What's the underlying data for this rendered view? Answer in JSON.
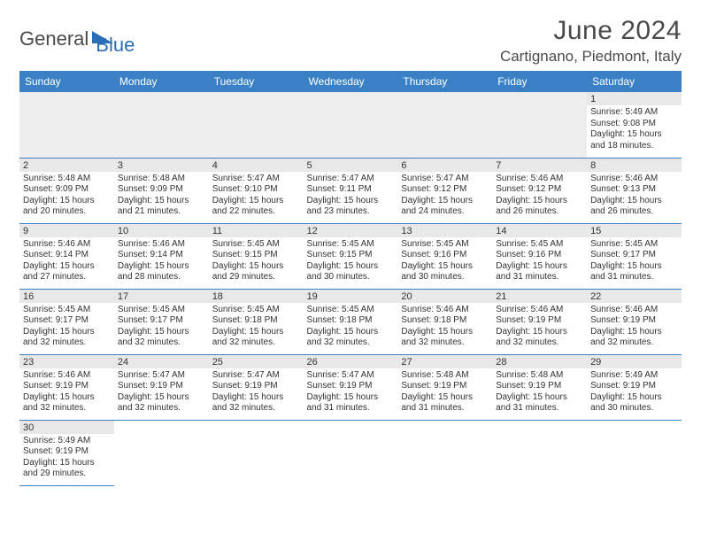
{
  "logo": {
    "part1": "General",
    "part2": "Blue"
  },
  "header": {
    "monthTitle": "June 2024",
    "location": "Cartignano, Piedmont, Italy"
  },
  "style": {
    "headerBg": "#3a80c4",
    "headerText": "#ffffff",
    "dayNumBg": "#e8e8e8",
    "borderColor": "#3a80c4",
    "logoGray": "#4a4a4a",
    "logoBlue": "#2a6fb5",
    "titleFontSize": 30,
    "locationFontSize": 17,
    "cellFontSize": 10
  },
  "columns": [
    "Sunday",
    "Monday",
    "Tuesday",
    "Wednesday",
    "Thursday",
    "Friday",
    "Saturday"
  ],
  "weeks": [
    [
      null,
      null,
      null,
      null,
      null,
      null,
      {
        "d": "1",
        "sr": "5:49 AM",
        "ss": "9:08 PM",
        "dl1": "15 hours",
        "dl2": "and 18 minutes."
      }
    ],
    [
      {
        "d": "2",
        "sr": "5:48 AM",
        "ss": "9:09 PM",
        "dl1": "15 hours",
        "dl2": "and 20 minutes."
      },
      {
        "d": "3",
        "sr": "5:48 AM",
        "ss": "9:09 PM",
        "dl1": "15 hours",
        "dl2": "and 21 minutes."
      },
      {
        "d": "4",
        "sr": "5:47 AM",
        "ss": "9:10 PM",
        "dl1": "15 hours",
        "dl2": "and 22 minutes."
      },
      {
        "d": "5",
        "sr": "5:47 AM",
        "ss": "9:11 PM",
        "dl1": "15 hours",
        "dl2": "and 23 minutes."
      },
      {
        "d": "6",
        "sr": "5:47 AM",
        "ss": "9:12 PM",
        "dl1": "15 hours",
        "dl2": "and 24 minutes."
      },
      {
        "d": "7",
        "sr": "5:46 AM",
        "ss": "9:12 PM",
        "dl1": "15 hours",
        "dl2": "and 26 minutes."
      },
      {
        "d": "8",
        "sr": "5:46 AM",
        "ss": "9:13 PM",
        "dl1": "15 hours",
        "dl2": "and 26 minutes."
      }
    ],
    [
      {
        "d": "9",
        "sr": "5:46 AM",
        "ss": "9:14 PM",
        "dl1": "15 hours",
        "dl2": "and 27 minutes."
      },
      {
        "d": "10",
        "sr": "5:46 AM",
        "ss": "9:14 PM",
        "dl1": "15 hours",
        "dl2": "and 28 minutes."
      },
      {
        "d": "11",
        "sr": "5:45 AM",
        "ss": "9:15 PM",
        "dl1": "15 hours",
        "dl2": "and 29 minutes."
      },
      {
        "d": "12",
        "sr": "5:45 AM",
        "ss": "9:15 PM",
        "dl1": "15 hours",
        "dl2": "and 30 minutes."
      },
      {
        "d": "13",
        "sr": "5:45 AM",
        "ss": "9:16 PM",
        "dl1": "15 hours",
        "dl2": "and 30 minutes."
      },
      {
        "d": "14",
        "sr": "5:45 AM",
        "ss": "9:16 PM",
        "dl1": "15 hours",
        "dl2": "and 31 minutes."
      },
      {
        "d": "15",
        "sr": "5:45 AM",
        "ss": "9:17 PM",
        "dl1": "15 hours",
        "dl2": "and 31 minutes."
      }
    ],
    [
      {
        "d": "16",
        "sr": "5:45 AM",
        "ss": "9:17 PM",
        "dl1": "15 hours",
        "dl2": "and 32 minutes."
      },
      {
        "d": "17",
        "sr": "5:45 AM",
        "ss": "9:17 PM",
        "dl1": "15 hours",
        "dl2": "and 32 minutes."
      },
      {
        "d": "18",
        "sr": "5:45 AM",
        "ss": "9:18 PM",
        "dl1": "15 hours",
        "dl2": "and 32 minutes."
      },
      {
        "d": "19",
        "sr": "5:45 AM",
        "ss": "9:18 PM",
        "dl1": "15 hours",
        "dl2": "and 32 minutes."
      },
      {
        "d": "20",
        "sr": "5:46 AM",
        "ss": "9:18 PM",
        "dl1": "15 hours",
        "dl2": "and 32 minutes."
      },
      {
        "d": "21",
        "sr": "5:46 AM",
        "ss": "9:19 PM",
        "dl1": "15 hours",
        "dl2": "and 32 minutes."
      },
      {
        "d": "22",
        "sr": "5:46 AM",
        "ss": "9:19 PM",
        "dl1": "15 hours",
        "dl2": "and 32 minutes."
      }
    ],
    [
      {
        "d": "23",
        "sr": "5:46 AM",
        "ss": "9:19 PM",
        "dl1": "15 hours",
        "dl2": "and 32 minutes."
      },
      {
        "d": "24",
        "sr": "5:47 AM",
        "ss": "9:19 PM",
        "dl1": "15 hours",
        "dl2": "and 32 minutes."
      },
      {
        "d": "25",
        "sr": "5:47 AM",
        "ss": "9:19 PM",
        "dl1": "15 hours",
        "dl2": "and 32 minutes."
      },
      {
        "d": "26",
        "sr": "5:47 AM",
        "ss": "9:19 PM",
        "dl1": "15 hours",
        "dl2": "and 31 minutes."
      },
      {
        "d": "27",
        "sr": "5:48 AM",
        "ss": "9:19 PM",
        "dl1": "15 hours",
        "dl2": "and 31 minutes."
      },
      {
        "d": "28",
        "sr": "5:48 AM",
        "ss": "9:19 PM",
        "dl1": "15 hours",
        "dl2": "and 31 minutes."
      },
      {
        "d": "29",
        "sr": "5:49 AM",
        "ss": "9:19 PM",
        "dl1": "15 hours",
        "dl2": "and 30 minutes."
      }
    ],
    [
      {
        "d": "30",
        "sr": "5:49 AM",
        "ss": "9:19 PM",
        "dl1": "15 hours",
        "dl2": "and 29 minutes."
      },
      null,
      null,
      null,
      null,
      null,
      null
    ]
  ],
  "labels": {
    "sunrise": "Sunrise:",
    "sunset": "Sunset:",
    "daylight": "Daylight:"
  }
}
